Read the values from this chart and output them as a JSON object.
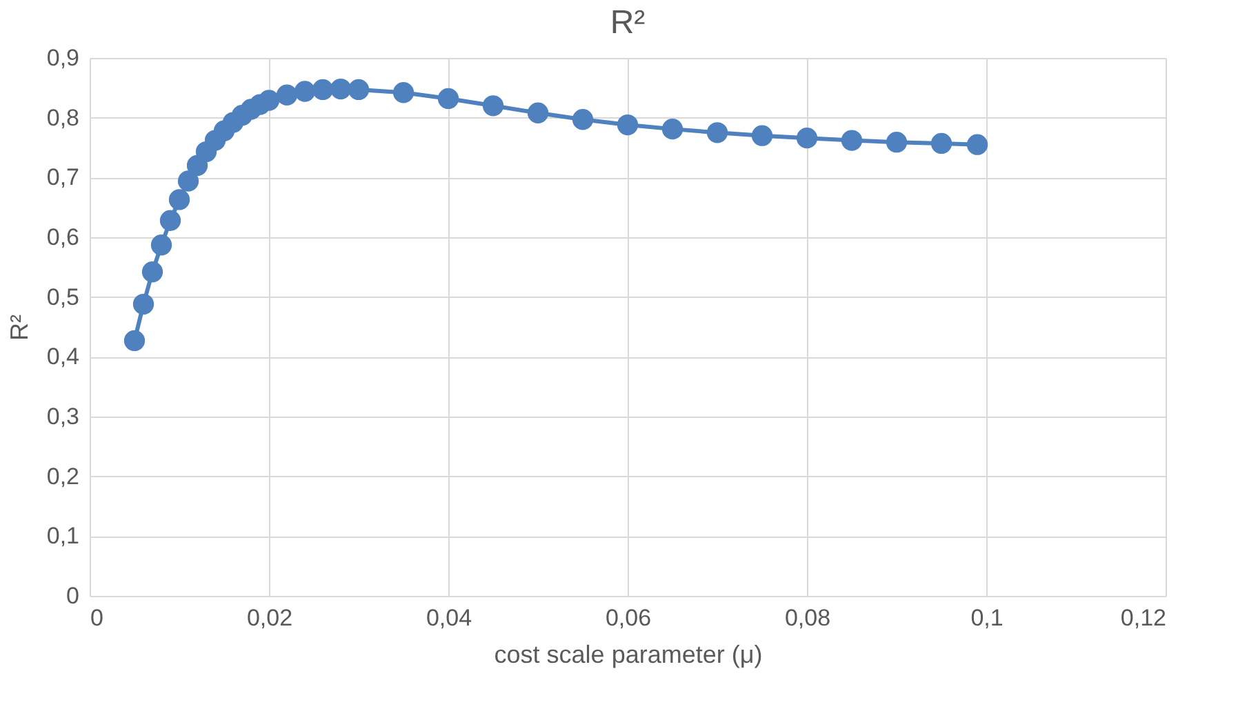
{
  "chart_data": {
    "type": "line",
    "title": "R²",
    "xlabel": "cost scale parameter (μ)",
    "ylabel": "R²",
    "x": [
      0.005,
      0.006,
      0.007,
      0.008,
      0.009,
      0.01,
      0.011,
      0.012,
      0.013,
      0.014,
      0.015,
      0.016,
      0.017,
      0.018,
      0.019,
      0.02,
      0.022,
      0.024,
      0.026,
      0.028,
      0.03,
      0.035,
      0.04,
      0.045,
      0.05,
      0.055,
      0.06,
      0.065,
      0.07,
      0.075,
      0.08,
      0.085,
      0.09,
      0.095,
      0.099
    ],
    "series": [
      {
        "color": "#4e81bd",
        "values": [
          0.427,
          0.488,
          0.542,
          0.587,
          0.628,
          0.663,
          0.694,
          0.72,
          0.743,
          0.762,
          0.778,
          0.792,
          0.804,
          0.814,
          0.822,
          0.829,
          0.838,
          0.844,
          0.847,
          0.848,
          0.847,
          0.842,
          0.832,
          0.82,
          0.808,
          0.797,
          0.788,
          0.781,
          0.775,
          0.77,
          0.766,
          0.762,
          0.759,
          0.757,
          0.755
        ]
      }
    ],
    "xlim": [
      0,
      0.12
    ],
    "ylim": [
      0,
      0.9
    ],
    "xticks": [
      0,
      {
        "value": 0.02,
        "label": "0,02"
      },
      {
        "value": 0.04,
        "label": "0,04"
      },
      {
        "value": 0.06,
        "label": "0,06"
      },
      {
        "value": 0.08,
        "label": "0,08"
      },
      {
        "value": 0.1,
        "label": "0,1"
      },
      {
        "value": 0.12,
        "label": "0,12"
      }
    ],
    "yticks": [
      0,
      {
        "value": 0.1,
        "label": "0,1"
      },
      {
        "value": 0.2,
        "label": "0,2"
      },
      {
        "value": 0.3,
        "label": "0,3"
      },
      {
        "value": 0.4,
        "label": "0,4"
      },
      {
        "value": 0.5,
        "label": "0,5"
      },
      {
        "value": 0.6,
        "label": "0,6"
      },
      {
        "value": 0.7,
        "label": "0,7"
      },
      {
        "value": 0.8,
        "label": "0,8"
      },
      {
        "value": 0.9,
        "label": "0,9"
      }
    ],
    "grid": true,
    "marker": "circle",
    "line_style": "solid"
  }
}
